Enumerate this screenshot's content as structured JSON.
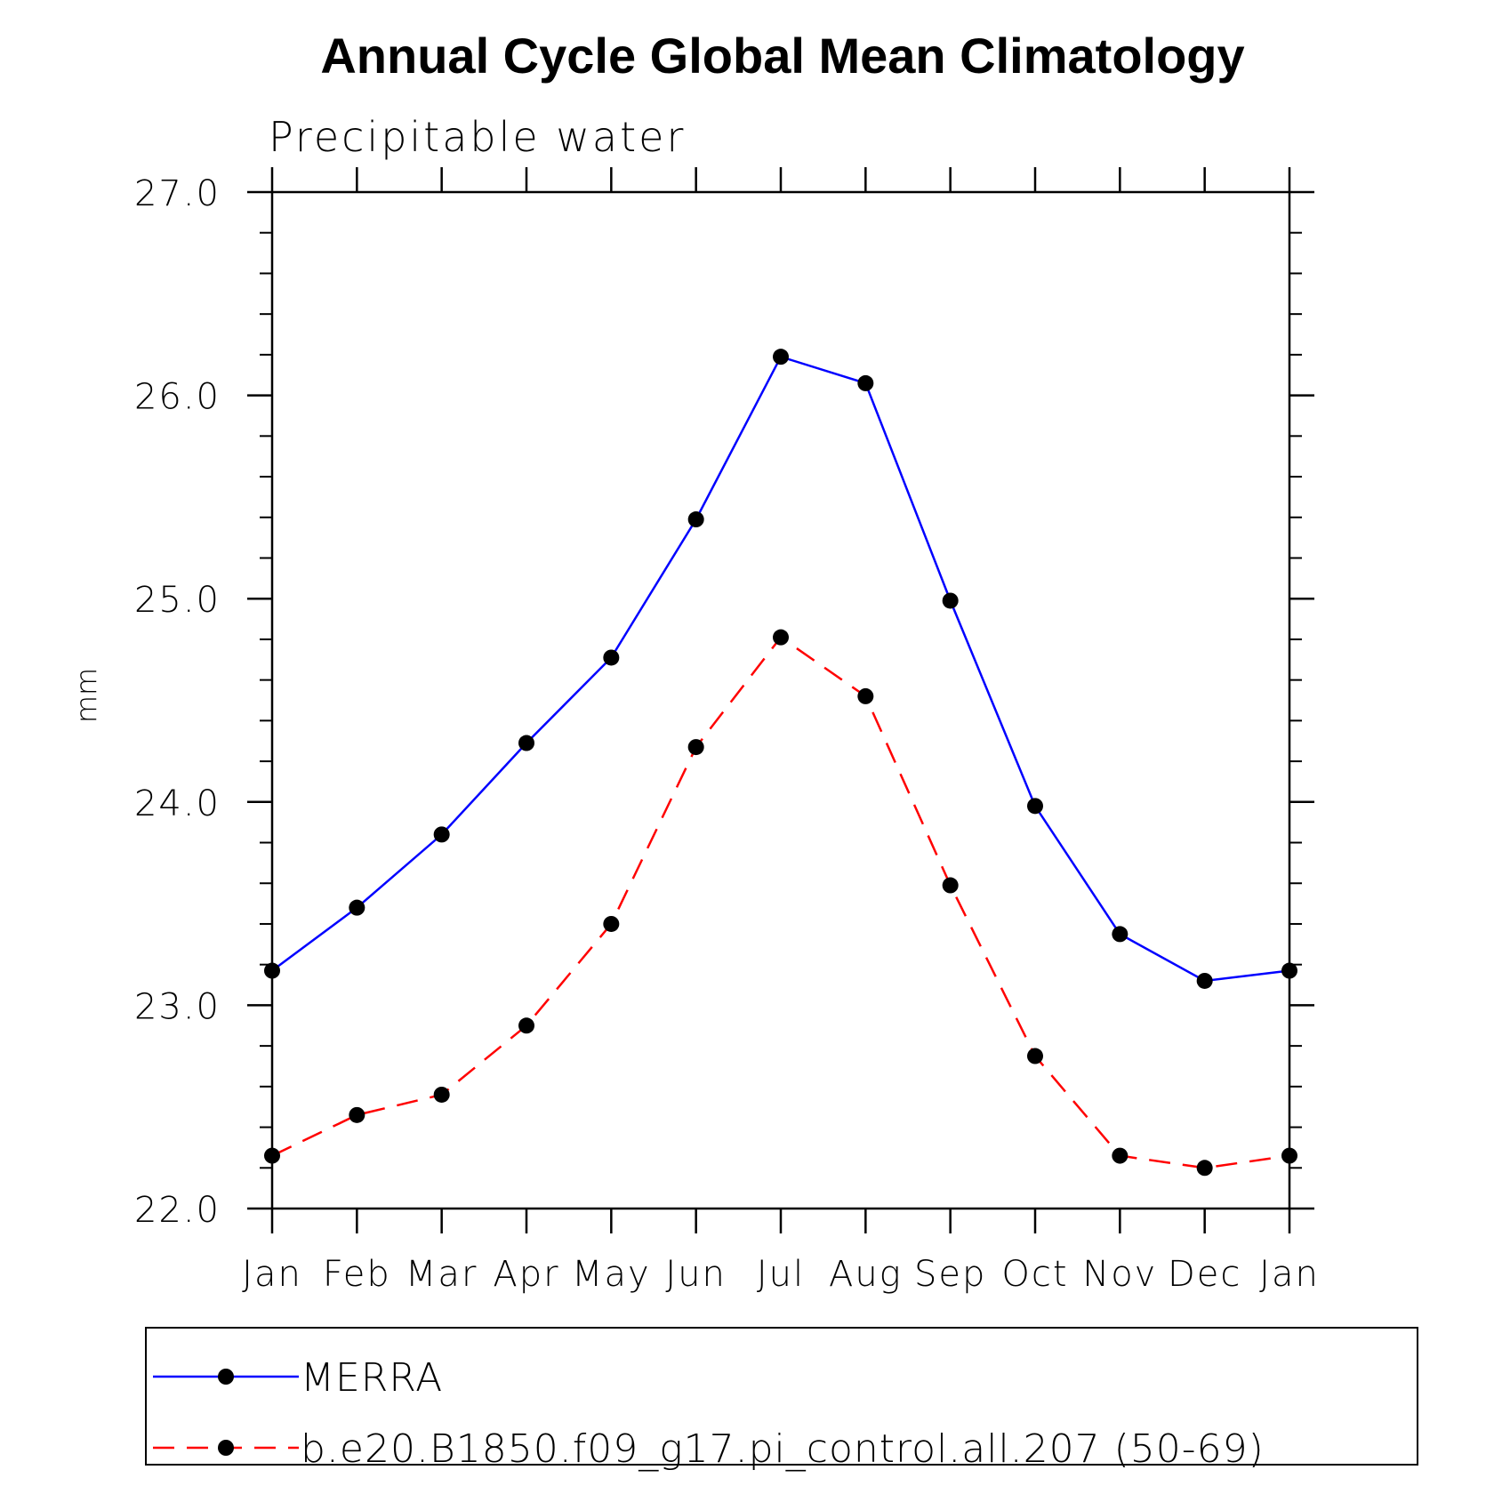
{
  "chart_data": {
    "type": "line",
    "title": "Annual Cycle Global Mean Climatology",
    "subtitle": "Precipitable water",
    "xlabel": "",
    "ylabel": "mm",
    "categories": [
      "Jan",
      "Feb",
      "Mar",
      "Apr",
      "May",
      "Jun",
      "Jul",
      "Aug",
      "Sep",
      "Oct",
      "Nov",
      "Dec",
      "Jan"
    ],
    "ylim": [
      22.0,
      27.0
    ],
    "yticks": [
      "22.0",
      "23.0",
      "24.0",
      "25.0",
      "26.0",
      "27.0"
    ],
    "yticks_values": [
      22.0,
      23.0,
      24.0,
      25.0,
      26.0,
      27.0
    ],
    "grid": false,
    "legend_position": "bottom",
    "series": [
      {
        "name": "MERRA",
        "color": "#0000ff",
        "line_style": "solid",
        "marker": "filled-circle",
        "values": [
          23.17,
          23.48,
          23.84,
          24.29,
          24.71,
          25.39,
          26.19,
          26.06,
          24.99,
          23.98,
          23.35,
          23.12,
          23.17
        ]
      },
      {
        "name": "b.e20.B1850.f09_g17.pi_control.all.207 (50-69)",
        "color": "#ff0000",
        "line_style": "dashed",
        "marker": "filled-circle",
        "values": [
          22.26,
          22.46,
          22.56,
          22.9,
          23.4,
          24.27,
          24.81,
          24.52,
          23.59,
          22.75,
          22.26,
          22.2,
          22.26
        ]
      }
    ]
  }
}
